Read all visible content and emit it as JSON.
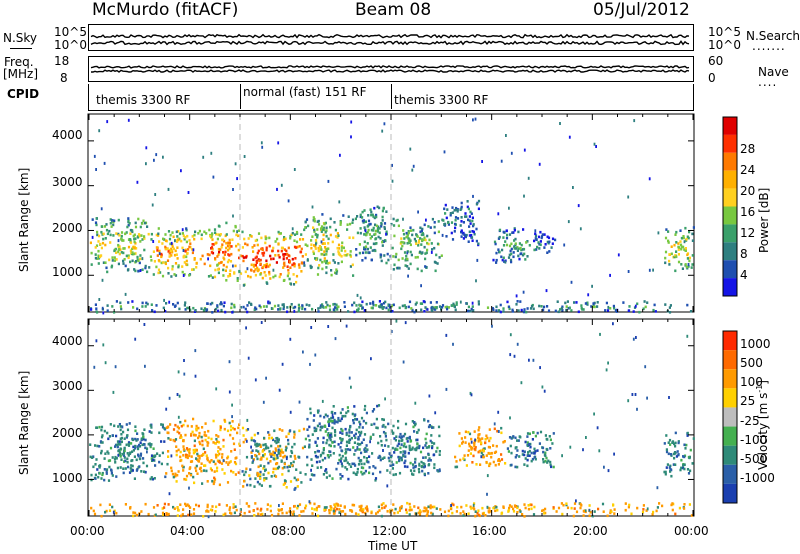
{
  "header": {
    "title": "McMurdo (fitACF)",
    "beam": "Beam 08",
    "date": "05/Jul/2012"
  },
  "panels": {
    "sky": {
      "left_label": "N.Sky",
      "right_label": "N.Search",
      "left_ticks": [
        "10^5",
        "10^0"
      ],
      "right_ticks": [
        "10^5",
        "10^0"
      ],
      "dotted_indicator": "......."
    },
    "freq": {
      "left_label": "Freq.",
      "unit": "[MHz]",
      "left_ticks": [
        "18",
        "8"
      ],
      "right_label": "Nave",
      "right_ticks": [
        "60",
        "0"
      ],
      "dotted_indicator": "...."
    },
    "cpid": {
      "label": "CPID",
      "segments": [
        {
          "text": "themis 3300 RF",
          "start_hour": 0
        },
        {
          "text": "normal (fast) 151 RF",
          "start_hour": 6
        },
        {
          "text": "themis 3300 RF",
          "start_hour": 12
        }
      ]
    }
  },
  "chart_data": [
    {
      "type": "heatmap",
      "name": "power",
      "xlabel": "Time UT",
      "ylabel": "Slant Range [km]",
      "xlim": [
        0,
        24
      ],
      "ylim": [
        180,
        4600
      ],
      "x_ticks": [
        "00:00",
        "04:00",
        "08:00",
        "12:00",
        "16:00",
        "20:00",
        "00:00"
      ],
      "y_ticks": [
        1000,
        2000,
        3000,
        4000
      ],
      "colorbar": {
        "label": "Power [dB]",
        "ticks": [
          "4",
          "8",
          "12",
          "16",
          "20",
          "24",
          "28"
        ],
        "colors": [
          "#1515e6",
          "#1f4fb0",
          "#2e7f80",
          "#3aa06a",
          "#78c840",
          "#ffd020",
          "#ffb000",
          "#ff7a00",
          "#ff3000",
          "#e00000"
        ]
      },
      "echo_regions": [
        {
          "t": [
            0.0,
            2.5
          ],
          "r": [
            1100,
            2300
          ],
          "level": 0.55
        },
        {
          "t": [
            2.5,
            4.5
          ],
          "r": [
            1000,
            2100
          ],
          "level": 0.75
        },
        {
          "t": [
            4.5,
            6.0
          ],
          "r": [
            900,
            2200
          ],
          "level": 0.85
        },
        {
          "t": [
            6.0,
            8.5
          ],
          "r": [
            800,
            2000
          ],
          "level": 0.95
        },
        {
          "t": [
            8.5,
            10.5
          ],
          "r": [
            1000,
            2400
          ],
          "level": 0.6
        },
        {
          "t": [
            10.5,
            12.0
          ],
          "r": [
            1300,
            2600
          ],
          "level": 0.35
        },
        {
          "t": [
            12.0,
            14.0
          ],
          "r": [
            1100,
            2300
          ],
          "level": 0.45
        },
        {
          "t": [
            14.0,
            15.5
          ],
          "r": [
            1700,
            2700
          ],
          "level": 0.2
        },
        {
          "t": [
            16.0,
            17.5
          ],
          "r": [
            1300,
            2100
          ],
          "level": 0.3
        },
        {
          "t": [
            17.5,
            18.5
          ],
          "r": [
            1400,
            2000
          ],
          "level": 0.2
        },
        {
          "t": [
            22.8,
            24.0
          ],
          "r": [
            1100,
            2100
          ],
          "level": 0.55
        },
        {
          "t": [
            0.0,
            24.0
          ],
          "r": [
            200,
            450
          ],
          "level": 0.3
        }
      ]
    },
    {
      "type": "heatmap",
      "name": "velocity",
      "xlabel": "Time UT",
      "ylabel": "Slant Range [km]",
      "xlim": [
        0,
        24
      ],
      "ylim": [
        180,
        4600
      ],
      "x_ticks": [
        "00:00",
        "04:00",
        "08:00",
        "12:00",
        "16:00",
        "20:00",
        "00:00"
      ],
      "y_ticks": [
        1000,
        2000,
        3000,
        4000
      ],
      "colorbar": {
        "label": "Velocity [m s^-1]",
        "unit_label": "Velocity [m s",
        "unit_exp": "-1",
        "unit_close": "]",
        "ticks": [
          "1000",
          "500",
          "100",
          "25",
          "-25",
          "-100",
          "-500",
          "-1000"
        ],
        "colors": [
          "#1a3fb0",
          "#2a5fa8",
          "#2e8a78",
          "#44b050",
          "#bdbdbd",
          "#ffd000",
          "#ff9a00",
          "#ff6a00",
          "#ff2a00"
        ]
      },
      "echo_regions": [
        {
          "t": [
            0.0,
            3.0
          ],
          "r": [
            1000,
            2300
          ],
          "vel": "toward"
        },
        {
          "t": [
            3.0,
            6.0
          ],
          "r": [
            900,
            2400
          ],
          "vel": "away"
        },
        {
          "t": [
            6.0,
            8.5
          ],
          "r": [
            800,
            2200
          ],
          "vel": "mixed"
        },
        {
          "t": [
            8.5,
            11.5
          ],
          "r": [
            1000,
            2700
          ],
          "vel": "toward"
        },
        {
          "t": [
            11.5,
            14.0
          ],
          "r": [
            1100,
            2400
          ],
          "vel": "toward"
        },
        {
          "t": [
            14.5,
            16.5
          ],
          "r": [
            1300,
            2200
          ],
          "vel": "away"
        },
        {
          "t": [
            16.5,
            18.5
          ],
          "r": [
            1300,
            2100
          ],
          "vel": "toward"
        },
        {
          "t": [
            22.8,
            24.0
          ],
          "r": [
            1100,
            2100
          ],
          "vel": "toward"
        },
        {
          "t": [
            0.0,
            24.0
          ],
          "r": [
            200,
            500
          ],
          "vel": "away"
        }
      ]
    }
  ]
}
